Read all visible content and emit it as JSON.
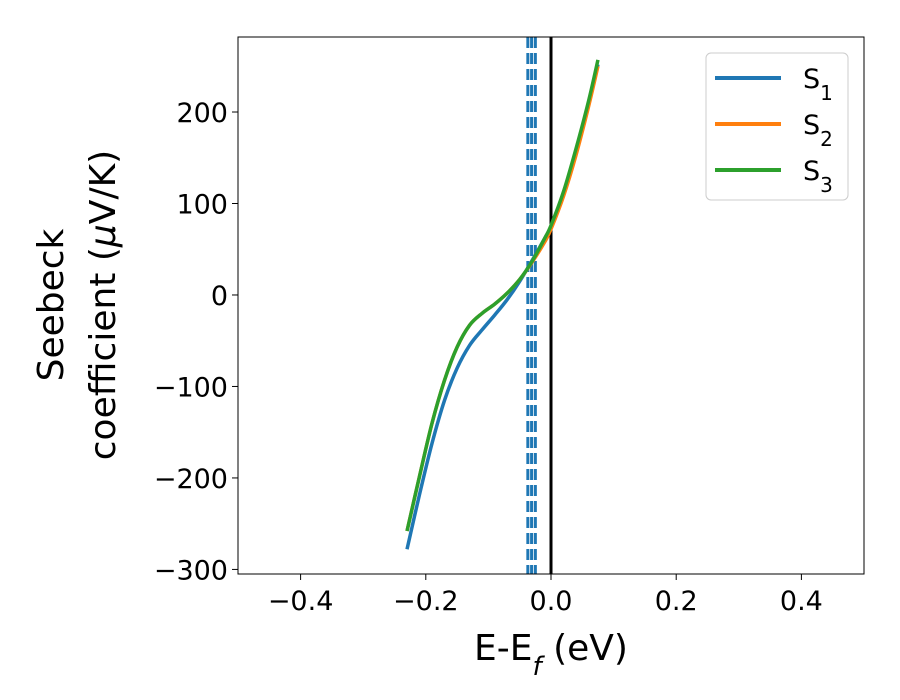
{
  "chart_data": {
    "type": "line",
    "xlabel": {
      "main": "E-E",
      "sub": "f",
      "suffix": " (eV)"
    },
    "ylabel": {
      "line1": "Seebeck",
      "line2_pre": "coefficient  (",
      "line2_mu": "μ",
      "line2_post": "V/K)"
    },
    "xlim": [
      -0.5,
      0.5
    ],
    "ylim": [
      -305,
      282
    ],
    "xticks": [
      -0.4,
      -0.2,
      0.0,
      0.2,
      0.4
    ],
    "xtick_labels": [
      "−0.4",
      "−0.2",
      "0.0",
      "0.2",
      "0.4"
    ],
    "yticks": [
      -300,
      -200,
      -100,
      0,
      100,
      200
    ],
    "ytick_labels": [
      "−300",
      "−200",
      "−100",
      "0",
      "100",
      "200"
    ],
    "grid": false,
    "legend_position": "top-right",
    "vertical_lines": [
      {
        "x": 0.0,
        "style": "solid",
        "color": "#000000"
      },
      {
        "x": -0.037,
        "style": "dashed",
        "color": "#1f77b4"
      },
      {
        "x": -0.031,
        "style": "dashed",
        "color": "#1f77b4"
      },
      {
        "x": -0.025,
        "style": "dashed",
        "color": "#1f77b4"
      }
    ],
    "series": [
      {
        "name": "S",
        "sub": "1",
        "color": "#1f77b4",
        "x": [
          -0.23,
          -0.21,
          -0.19,
          -0.17,
          -0.15,
          -0.13,
          -0.11,
          -0.09,
          -0.07,
          -0.05,
          -0.03,
          -0.01,
          0.0,
          0.02,
          0.04,
          0.06,
          0.075
        ],
        "y": [
          -278,
          -218,
          -162,
          -115,
          -80,
          -55,
          -38,
          -22,
          -5,
          15,
          38,
          62,
          75,
          110,
          155,
          208,
          252
        ]
      },
      {
        "name": "S",
        "sub": "2",
        "color": "#ff7f0e",
        "x": [
          -0.23,
          -0.21,
          -0.19,
          -0.17,
          -0.15,
          -0.13,
          -0.11,
          -0.09,
          -0.07,
          -0.05,
          -0.03,
          -0.01,
          0.0,
          0.02,
          0.04,
          0.06,
          0.075
        ],
        "y": [
          -258,
          -198,
          -140,
          -93,
          -57,
          -33,
          -20,
          -10,
          2,
          17,
          36,
          58,
          72,
          108,
          153,
          206,
          250
        ]
      },
      {
        "name": "S",
        "sub": "3",
        "color": "#2ca02c",
        "x": [
          -0.23,
          -0.21,
          -0.19,
          -0.17,
          -0.15,
          -0.13,
          -0.11,
          -0.09,
          -0.07,
          -0.05,
          -0.03,
          -0.01,
          0.0,
          0.02,
          0.04,
          0.06,
          0.075
        ],
        "y": [
          -258,
          -198,
          -140,
          -93,
          -57,
          -33,
          -20,
          -10,
          2,
          17,
          37,
          62,
          76,
          113,
          160,
          212,
          257
        ]
      }
    ]
  }
}
